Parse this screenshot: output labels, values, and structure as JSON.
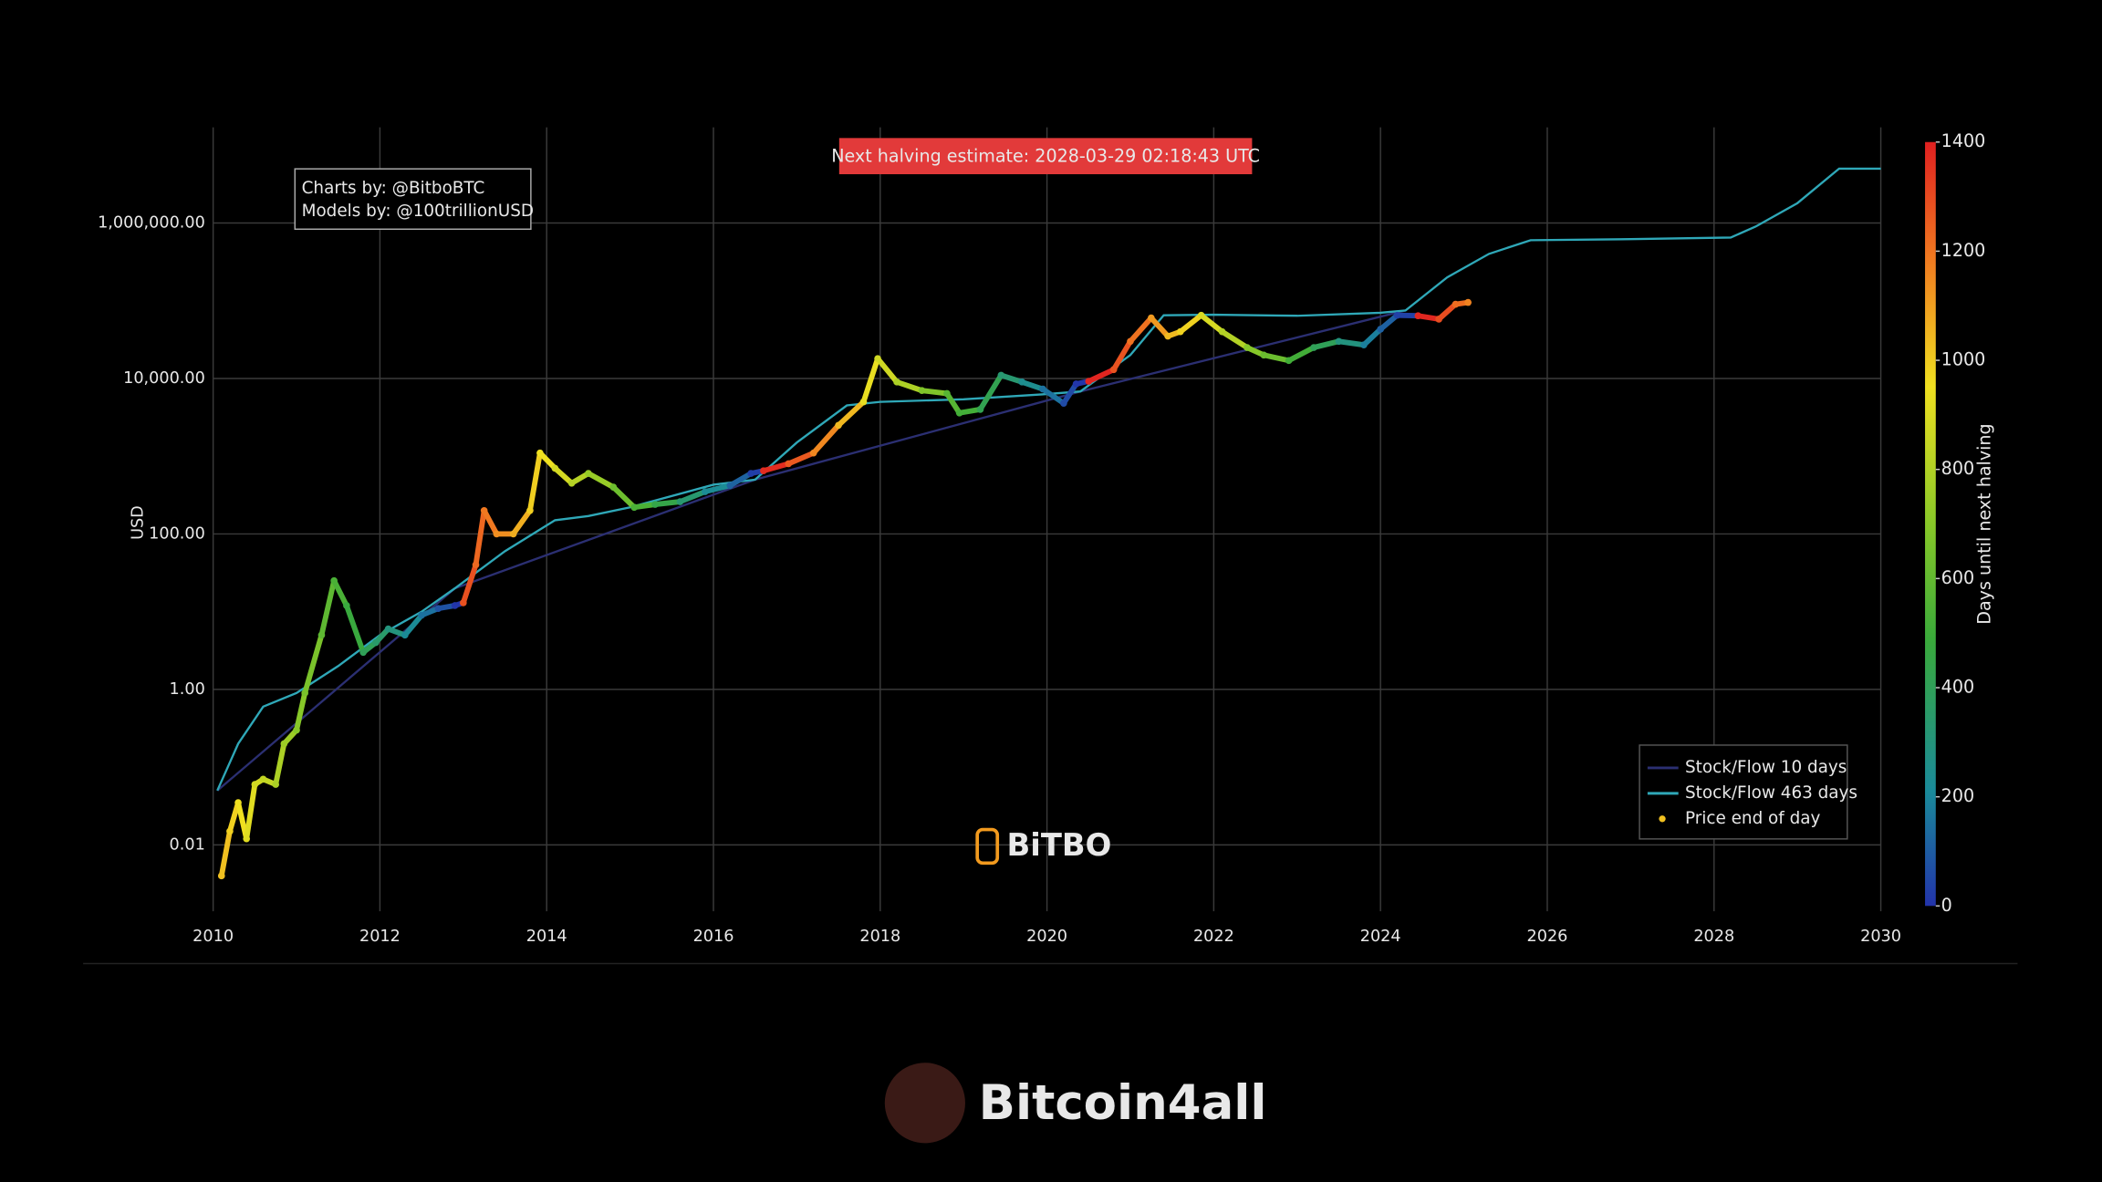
{
  "chart_data": {
    "type": "line",
    "y_label": "USD",
    "log_y": true,
    "grid": true,
    "legend_position": "bottom right",
    "annotations": {
      "halving": "Next halving estimate: 2028-03-29 02:18:43 UTC",
      "credits": [
        "Charts by: @BitboBTC",
        "Models by: @100trillionUSD"
      ],
      "watermarks": [
        "BiTBO",
        "Bitcoin4all"
      ]
    },
    "xlim": [
      2010,
      2030
    ],
    "xticks": [
      2010,
      2012,
      2014,
      2016,
      2018,
      2020,
      2022,
      2024,
      2026,
      2028,
      2030
    ],
    "ylim": [
      0.0014,
      17000000
    ],
    "yticks": [
      {
        "value": 0.01,
        "label": "0.01"
      },
      {
        "value": 1,
        "label": "1.00"
      },
      {
        "value": 100,
        "label": "100.00"
      },
      {
        "value": 10000,
        "label": "10,000.00"
      },
      {
        "value": 1000000,
        "label": "1,000,000.00"
      }
    ],
    "series": [
      {
        "name": "Stock/Flow 10 days",
        "type": "line",
        "color": "#2b2f72",
        "x": [
          2010.05,
          2012.9,
          2016.5,
          2020.4,
          2024.3
        ],
        "values": [
          0.05,
          20,
          500,
          6800,
          75000
        ]
      },
      {
        "name": "Stock/Flow 463 days",
        "type": "line",
        "color": "#2fa8b8",
        "x": [
          2010.05,
          2010.3,
          2010.6,
          2011.0,
          2011.5,
          2012.0,
          2012.5,
          2012.9,
          2013.5,
          2014.1,
          2014.5,
          2015.0,
          2016.0,
          2016.5,
          2017.0,
          2017.6,
          2018.0,
          2019.0,
          2020.0,
          2020.4,
          2021.0,
          2021.4,
          2022.0,
          2023.0,
          2024.0,
          2024.3,
          2024.8,
          2025.3,
          2025.8,
          2027.0,
          2028.2,
          2028.5,
          2029.0,
          2029.5,
          2030.0
        ],
        "values": [
          0.05,
          0.2,
          0.6,
          0.9,
          2,
          5,
          10,
          20,
          60,
          150,
          170,
          220,
          430,
          500,
          1500,
          4500,
          5000,
          5400,
          6300,
          6800,
          20000,
          65000,
          66000,
          64000,
          70000,
          75000,
          200000,
          400000,
          600000,
          620000,
          650000,
          900000,
          1800000,
          5000000,
          5000000
        ]
      },
      {
        "name": "Price end of day",
        "type": "scatter",
        "color": "#f0c020",
        "x": [
          2010.1,
          2010.2,
          2010.3,
          2010.4,
          2010.5,
          2010.6,
          2010.75,
          2010.85,
          2011.0,
          2011.1,
          2011.3,
          2011.45,
          2011.6,
          2011.8,
          2011.95,
          2012.1,
          2012.3,
          2012.5,
          2012.7,
          2012.9,
          2013.0,
          2013.15,
          2013.25,
          2013.4,
          2013.6,
          2013.8,
          2013.92,
          2014.1,
          2014.3,
          2014.5,
          2014.8,
          2015.05,
          2015.3,
          2015.6,
          2015.9,
          2016.2,
          2016.45,
          2016.6,
          2016.9,
          2017.2,
          2017.5,
          2017.8,
          2017.97,
          2018.2,
          2018.5,
          2018.8,
          2018.95,
          2019.2,
          2019.45,
          2019.7,
          2019.95,
          2020.2,
          2020.35,
          2020.5,
          2020.8,
          2021.0,
          2021.25,
          2021.45,
          2021.6,
          2021.85,
          2022.1,
          2022.4,
          2022.6,
          2022.9,
          2023.2,
          2023.5,
          2023.8,
          2024.0,
          2024.2,
          2024.45,
          2024.7,
          2024.9,
          2025.05
        ],
        "values": [
          0.004,
          0.015,
          0.035,
          0.012,
          0.06,
          0.07,
          0.06,
          0.2,
          0.3,
          0.9,
          5,
          25,
          12,
          3,
          4,
          6,
          5,
          9,
          11,
          12,
          13,
          40,
          200,
          100,
          100,
          200,
          1100,
          700,
          450,
          600,
          400,
          220,
          240,
          260,
          350,
          420,
          600,
          650,
          800,
          1100,
          2500,
          5000,
          18000,
          9000,
          7000,
          6400,
          3600,
          4000,
          11000,
          9000,
          7300,
          4800,
          8500,
          9200,
          13000,
          30000,
          60000,
          35000,
          40000,
          65000,
          40000,
          25000,
          20000,
          17000,
          25000,
          30000,
          27000,
          43000,
          65000,
          64000,
          58000,
          90000,
          95000
        ],
        "days": [
          1026,
          989,
          953,
          916,
          880,
          843,
          788,
          752,
          697,
          661,
          588,
          533,
          478,
          405,
          350,
          296,
          223,
          150,
          77,
          4,
          1282,
          1230,
          1190,
          1139,
          1066,
          993,
          949,
          883,
          810,
          737,
          628,
          537,
          445,
          336,
          226,
          117,
          26,
          1372,
          1263,
          1153,
          1044,
          934,
          872,
          788,
          679,
          569,
          515,
          423,
          332,
          241,
          150,
          58,
          4,
          1387,
          1278,
          1205,
          1113,
          1040,
          985,
          894,
          803,
          694,
          621,
          511,
          402,
          292,
          183,
          110,
          37,
          1383,
          1292,
          1219,
          1165
        ]
      }
    ],
    "colorbar": {
      "label": "Days until next halving",
      "lim": [
        0,
        1400
      ],
      "ticks": [
        0,
        200,
        400,
        600,
        800,
        1000,
        1200,
        1400
      ],
      "colorscale": [
        [
          0,
          "#2233aa"
        ],
        [
          0.15,
          "#1a8a9a"
        ],
        [
          0.35,
          "#3aaa3a"
        ],
        [
          0.5,
          "#88c828"
        ],
        [
          0.68,
          "#f0e020"
        ],
        [
          0.85,
          "#f07820"
        ],
        [
          1,
          "#e02020"
        ]
      ]
    }
  }
}
